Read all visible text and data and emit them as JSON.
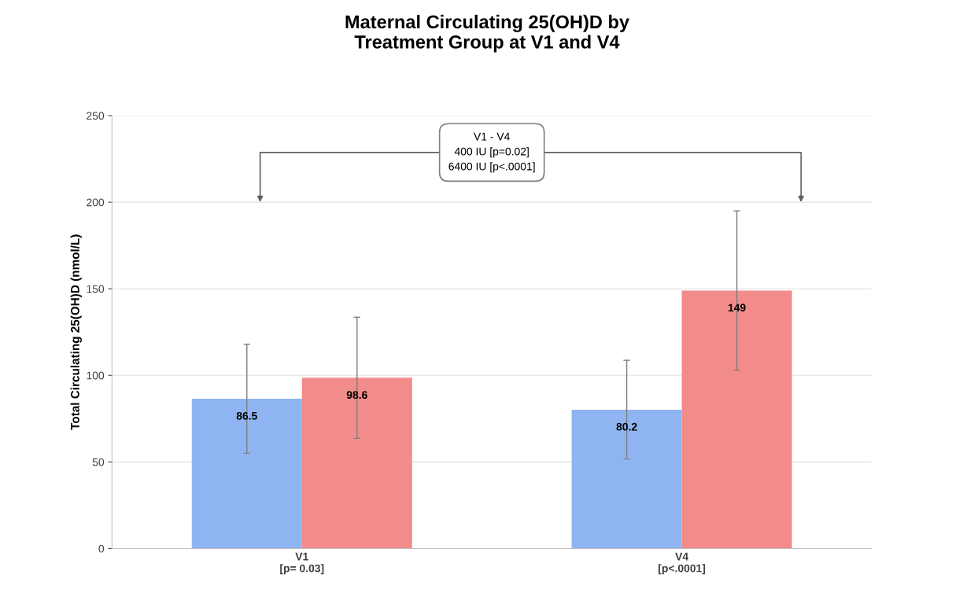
{
  "chart_data": {
    "type": "bar",
    "title": "Maternal Circulating 25(OH)D by\nTreatment Group at V1 and V4",
    "ylabel": "Total Circulating 25(OH)D (nmol/L)",
    "categories": [
      "V1\n[p= 0.03]",
      "V4\n[p<.0001]"
    ],
    "series": [
      {
        "color": "#8fb4f2",
        "values": [
          86.5,
          80.2
        ],
        "errors": [
          31.5,
          28.5
        ]
      },
      {
        "color": "#f28c8a",
        "values": [
          98.6,
          149
        ],
        "errors": [
          35,
          46
        ]
      }
    ],
    "data_labels": true,
    "ylim": [
      0,
      250
    ],
    "yticks": [
      0,
      50,
      100,
      150,
      200,
      250
    ],
    "grid": "y",
    "annotations": [
      "V1 - V4",
      "400 IU [p=0.02]",
      "6400 IU [p<.0001]"
    ]
  }
}
